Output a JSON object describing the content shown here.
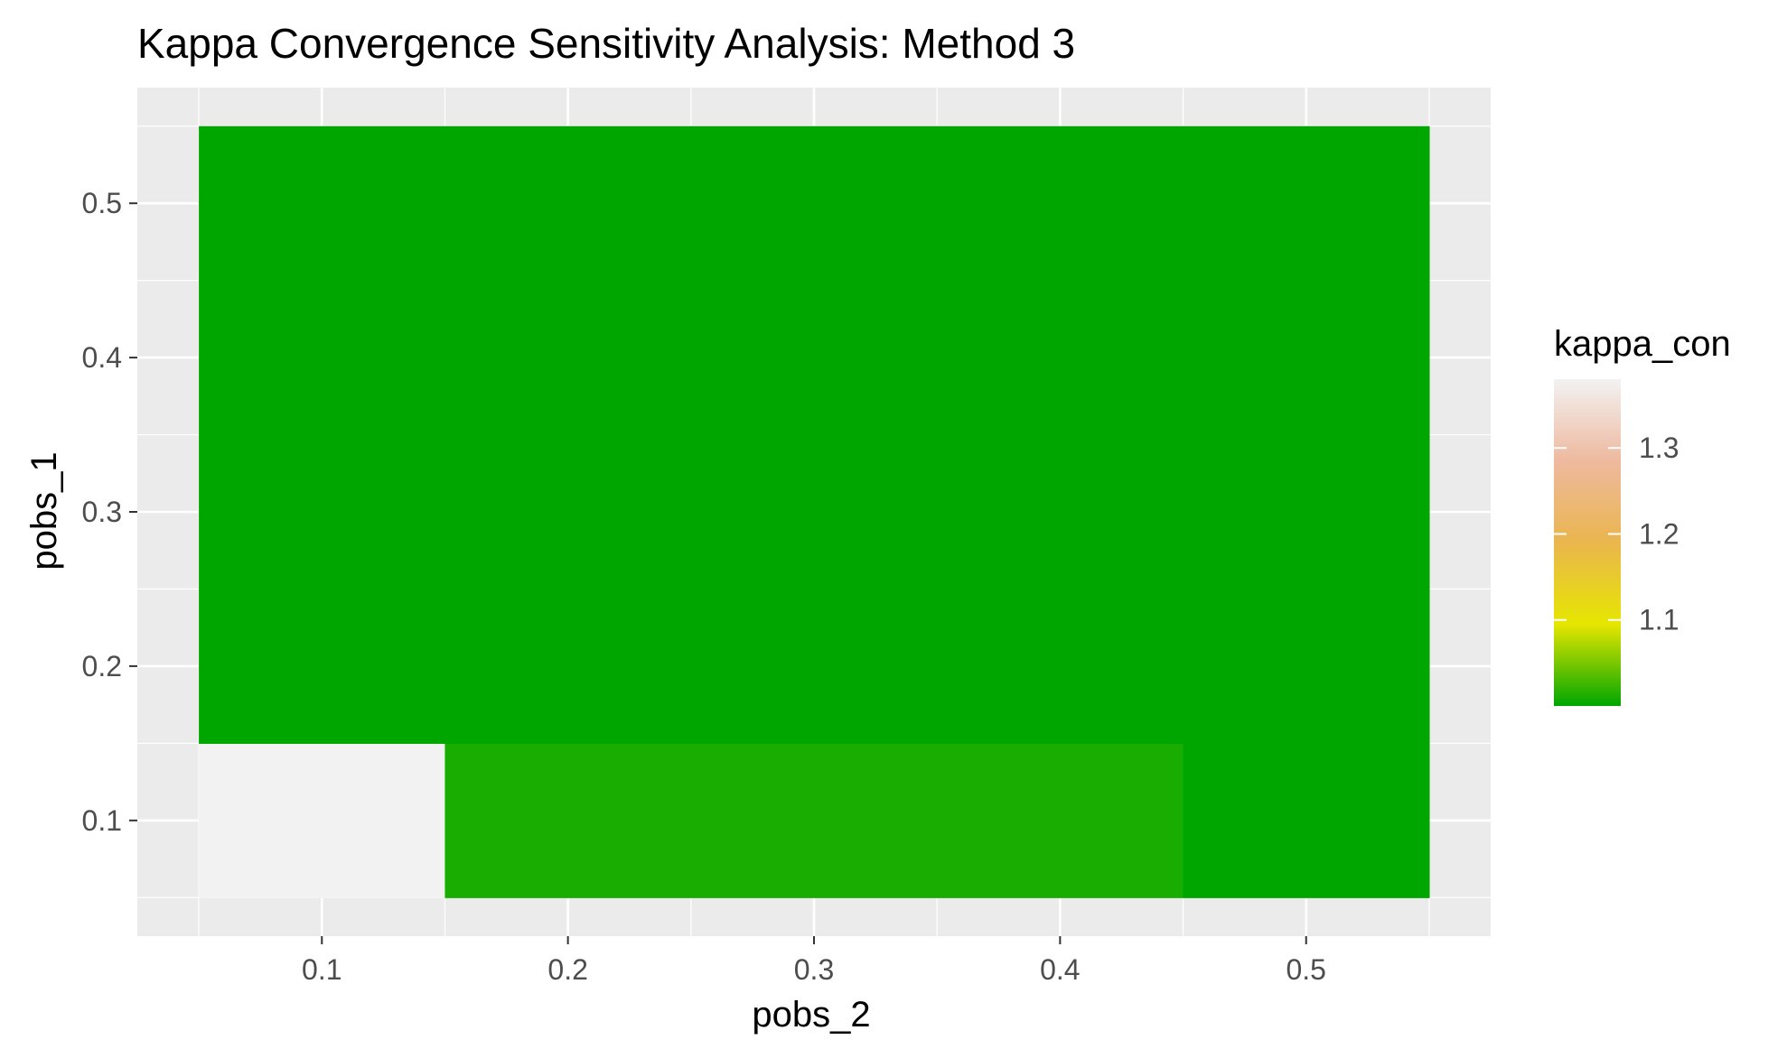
{
  "chart_data": {
    "type": "heatmap",
    "title": "Kappa Convergence Sensitivity Analysis: Method 3",
    "xlabel": "pobs_2",
    "ylabel": "pobs_1",
    "x": [
      0.1,
      0.2,
      0.3,
      0.4,
      0.5
    ],
    "y": [
      0.1,
      0.2,
      0.3,
      0.4,
      0.5
    ],
    "xlim": [
      0.025,
      0.575
    ],
    "ylim": [
      0.025,
      0.575
    ],
    "xticks": [
      0.1,
      0.2,
      0.3,
      0.4,
      0.5
    ],
    "yticks": [
      0.1,
      0.2,
      0.3,
      0.4,
      0.5
    ],
    "xtick_labels": [
      "0.1",
      "0.2",
      "0.3",
      "0.4",
      "0.5"
    ],
    "ytick_labels": [
      "0.1",
      "0.2",
      "0.3",
      "0.4",
      "0.5"
    ],
    "values": [
      [
        1.38,
        1.01,
        1.01,
        1.01,
        1.0
      ],
      [
        1.0,
        1.0,
        1.0,
        1.0,
        1.0
      ],
      [
        1.0,
        1.0,
        1.0,
        1.0,
        1.0
      ],
      [
        1.0,
        1.0,
        1.0,
        1.0,
        1.0
      ],
      [
        1.0,
        1.0,
        1.0,
        1.0,
        1.0
      ]
    ],
    "grid": true,
    "legend": {
      "title": "kappa_con",
      "position": "right",
      "range": [
        1.0,
        1.38
      ],
      "ticks": [
        1.1,
        1.2,
        1.3
      ],
      "tick_labels": [
        "1.1",
        "1.2",
        "1.3"
      ],
      "colors": [
        "#00a600",
        "#e6e600",
        "#eab64e",
        "#eeb99f",
        "#f2f2f2"
      ]
    },
    "panel_background": "#ebebeb",
    "grid_color": "#ffffff"
  }
}
